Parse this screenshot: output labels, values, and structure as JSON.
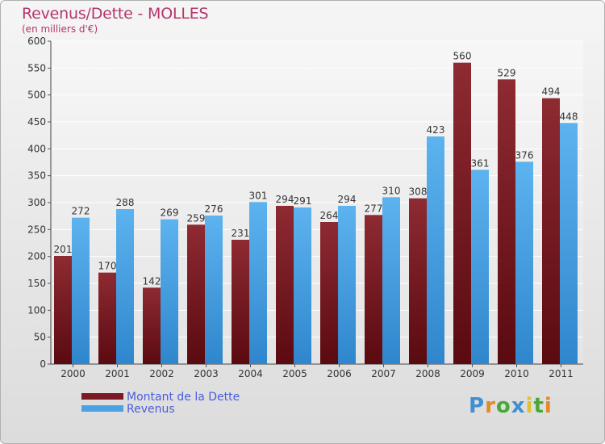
{
  "title": "Revenus/Dette - MOLLES",
  "subtitle": "(en milliers d'€)",
  "colors": {
    "dette": "#7a1a22",
    "revenus": "#4ba3e3",
    "title": "#b5366c",
    "legend_text": "#4b5ce0"
  },
  "logo": {
    "text": "Proxiti",
    "letter_colors": [
      "#3f8fd2",
      "#e08a2a",
      "#4aa83a",
      "#3f8fd2",
      "#e0c12a",
      "#4aa83a",
      "#e08a2a"
    ]
  },
  "chart_data": {
    "type": "bar",
    "categories": [
      "2000",
      "2001",
      "2002",
      "2003",
      "2004",
      "2005",
      "2006",
      "2007",
      "2008",
      "2009",
      "2010",
      "2011"
    ],
    "series": [
      {
        "name": "Montant de la Dette",
        "values": [
          201,
          170,
          142,
          259,
          231,
          294,
          264,
          277,
          308,
          560,
          529,
          494
        ]
      },
      {
        "name": "Revenus",
        "values": [
          272,
          288,
          269,
          276,
          301,
          291,
          294,
          310,
          423,
          361,
          376,
          448
        ]
      }
    ],
    "ylim": [
      0,
      600
    ],
    "yticks": [
      0,
      50,
      100,
      150,
      200,
      250,
      300,
      350,
      400,
      450,
      500,
      550,
      600
    ],
    "grid": true,
    "legend_position": "bottom-left"
  }
}
